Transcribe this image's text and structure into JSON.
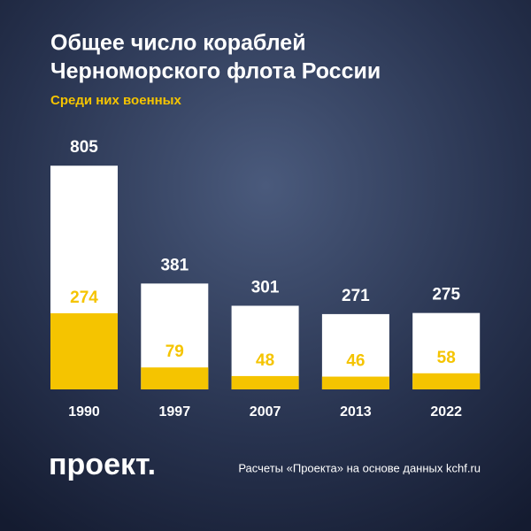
{
  "chart_data": {
    "type": "overlap-bar",
    "title": [
      "Общее число кораблей",
      "Черноморского флота России"
    ],
    "subtitle": "Среди них военных",
    "categories": [
      "1990",
      "1997",
      "2007",
      "2013",
      "2022"
    ],
    "series": [
      {
        "color": "#ffffff",
        "values": [
          805,
          381,
          301,
          271,
          275
        ]
      },
      {
        "color": "#f5c400",
        "values": [
          274,
          79,
          48,
          46,
          58
        ]
      }
    ],
    "logo": "проект.",
    "source": "Расчеты «Проекта» на основе данных kchf.ru"
  }
}
